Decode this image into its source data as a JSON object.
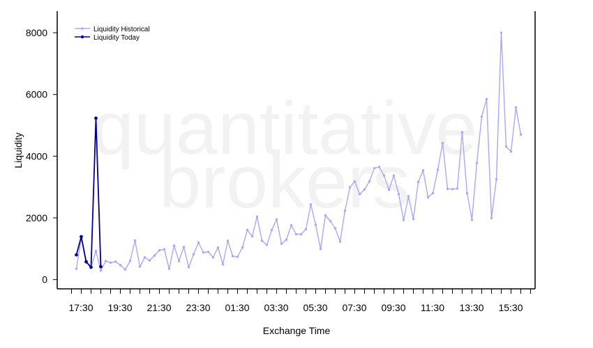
{
  "chart_data": {
    "type": "line",
    "watermark": [
      "quantitative",
      "brokers"
    ],
    "xlabel": "Exchange Time",
    "ylabel": "Liquidity",
    "ylim": [
      -300,
      8700
    ],
    "yticks": [
      0,
      2000,
      4000,
      6000,
      8000
    ],
    "xticks": [
      "17:30",
      "19:30",
      "21:30",
      "23:30",
      "01:30",
      "03:30",
      "05:30",
      "07:30",
      "09:30",
      "11:30",
      "13:30",
      "15:30"
    ],
    "legend_position": "top-left",
    "series": [
      {
        "name": "Liquidity Historical",
        "color": "#a8a8f8",
        "values": [
          350,
          1350,
          550,
          400,
          930,
          290,
          600,
          550,
          580,
          470,
          330,
          600,
          1270,
          420,
          720,
          620,
          780,
          950,
          980,
          350,
          1100,
          600,
          1060,
          400,
          820,
          1200,
          880,
          900,
          720,
          1040,
          490,
          1260,
          760,
          740,
          1040,
          1610,
          1400,
          2040,
          1260,
          1120,
          1610,
          1950,
          1160,
          1290,
          1760,
          1470,
          1470,
          1630,
          2440,
          1770,
          990,
          2080,
          1900,
          1660,
          1230,
          2230,
          2990,
          3180,
          2770,
          2920,
          3180,
          3610,
          3650,
          3370,
          2910,
          3370,
          2770,
          1930,
          2700,
          1960,
          3160,
          3540,
          2670,
          2800,
          3560,
          4430,
          2940,
          2930,
          2950,
          4770,
          2800,
          1940,
          3780,
          5280,
          5850,
          1990,
          3250,
          8000,
          4310,
          4150,
          5580,
          4700
        ]
      },
      {
        "name": "Liquidity Today",
        "color": "#00008b",
        "values": [
          800,
          1390,
          580,
          400,
          5230,
          420
        ]
      }
    ]
  }
}
